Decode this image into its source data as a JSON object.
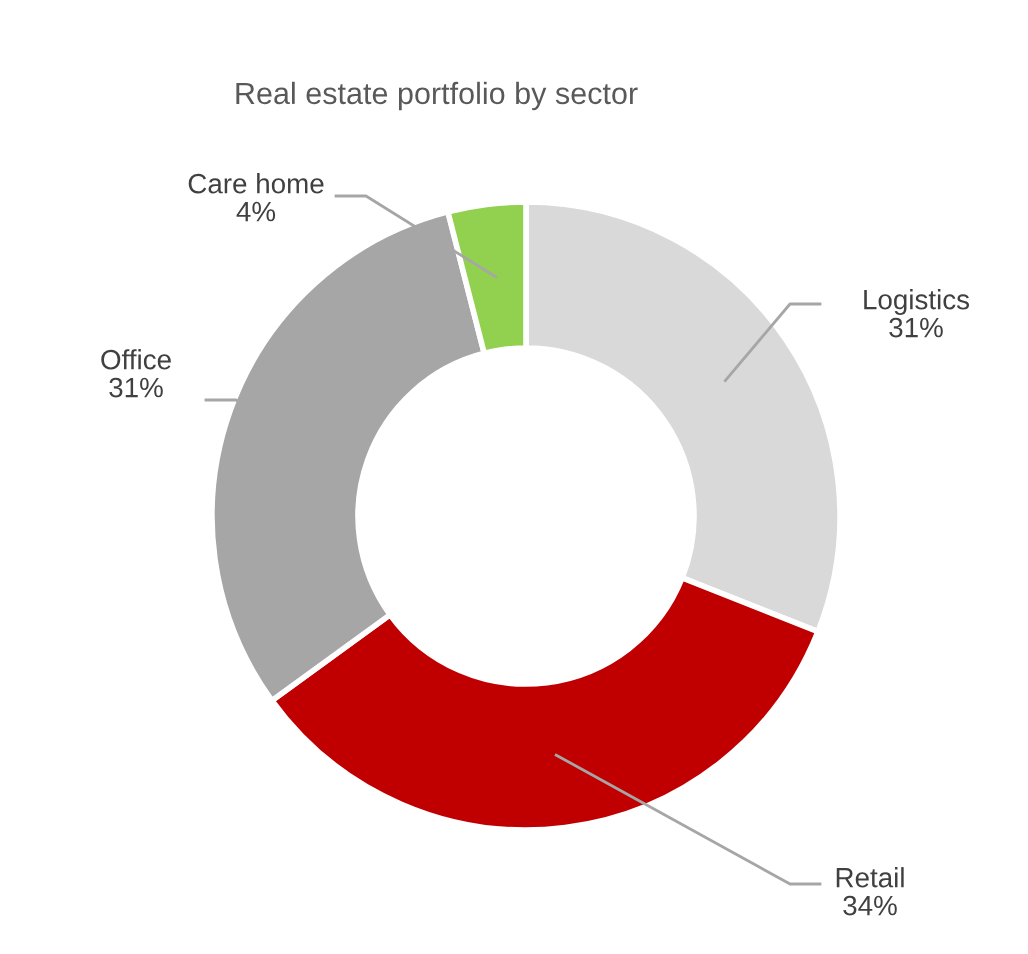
{
  "chart_data": {
    "type": "donut",
    "title": "Real estate portfolio by sector",
    "categories": [
      "Logistics",
      "Retail",
      "Office",
      "Care home"
    ],
    "values": [
      31,
      34,
      31,
      4
    ],
    "colors": [
      "#d9d9d9",
      "#c00000",
      "#a6a6a6",
      "#92d050"
    ],
    "value_labels": [
      "31%",
      "34%",
      "31%",
      "4%"
    ],
    "legend": false
  }
}
